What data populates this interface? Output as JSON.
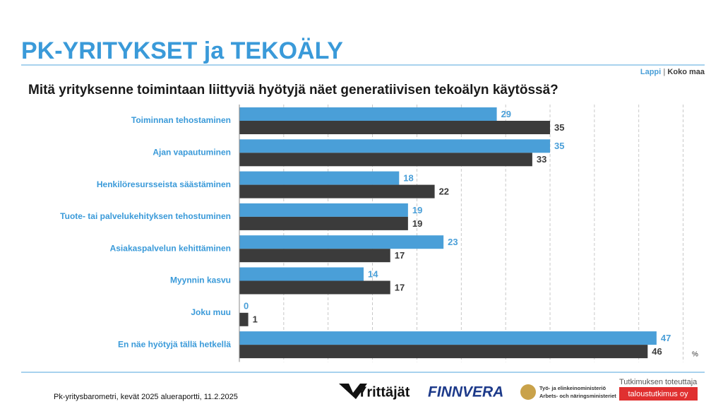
{
  "chart_data": {
    "type": "hbar",
    "title": "PK-YRITYKSET ja TEKOÄLY",
    "subtitle": "Mitä yrityksenne toimintaan liittyviä hyötyjä näet generatiivisen tekoälyn käytössä?",
    "categories": [
      "Toiminnan tehostaminen",
      "Ajan vapautuminen",
      "Henkilöresursseista säästäminen",
      "Tuote- tai palvelukehityksen tehostuminen",
      "Asiakaspalvelun kehittäminen",
      "Myynnin kasvu",
      "Joku muu",
      "En näe hyötyjä tällä hetkellä"
    ],
    "series": [
      {
        "name": "Lappi",
        "color": "#4a9fd8",
        "values": [
          29,
          35,
          18,
          19,
          23,
          14,
          0,
          47
        ]
      },
      {
        "name": "Koko maa",
        "color": "#3b3b3b",
        "values": [
          35,
          33,
          22,
          19,
          17,
          17,
          1,
          46
        ]
      }
    ],
    "xlim": [
      0,
      50
    ],
    "xticks": [
      5,
      10,
      15,
      20,
      25,
      30,
      35,
      40,
      45,
      50
    ],
    "grid": true,
    "unit_label": "%",
    "legend": "top-right"
  },
  "footer": {
    "source": "Pk-yritysbarometri, kevät 2025 alueraportti, 11.2.2025",
    "logos": [
      "Yrittäjät",
      "FINNVERA",
      "Työ- ja elinkeinoministeriö",
      "Arbets- och näringsministeriet"
    ],
    "conductor_caption": "Tutkimuksen toteuttaja",
    "conductor": "taloustutkimus oy"
  }
}
